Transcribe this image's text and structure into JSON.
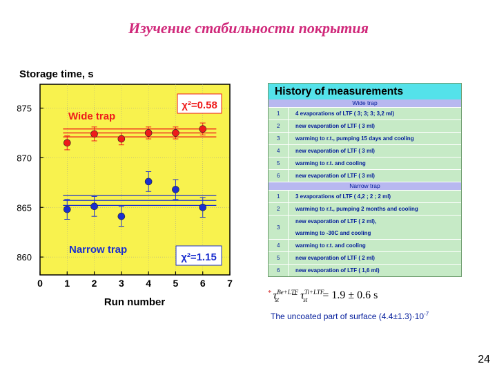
{
  "slide": {
    "title": "Изучение стабильности покрытия",
    "page_number": "24"
  },
  "chart_data": {
    "type": "scatter",
    "ylabel": "Storage time, s",
    "xlabel": "Run number",
    "xlim": [
      0,
      7
    ],
    "ylim": [
      858.2,
      877.4
    ],
    "xticks": [
      "0",
      "1",
      "2",
      "3",
      "4",
      "5",
      "6",
      "7"
    ],
    "yticks": [
      "860",
      "865",
      "870",
      "875"
    ],
    "colors": {
      "background": "#f8f24e",
      "wide": "#ee1b1b",
      "narrow": "#1b2fcf",
      "chi_text": "#ee1b1b"
    },
    "annotations": {
      "wide_label": "Wide trap",
      "narrow_label": "Narrow trap",
      "wide_chi": "χ²=0.58",
      "narrow_chi": "χ²=1.15"
    },
    "series": [
      {
        "name": "Wide trap",
        "x": [
          1,
          2,
          3,
          4,
          5,
          6
        ],
        "y": [
          871.5,
          872.4,
          871.9,
          872.5,
          872.5,
          872.9
        ],
        "err": [
          0.7,
          0.7,
          0.6,
          0.6,
          0.6,
          0.6
        ],
        "fit": [
          872.1,
          872.5,
          872.9
        ]
      },
      {
        "name": "Narrow trap",
        "x": [
          1,
          2,
          3,
          4,
          5,
          6
        ],
        "y": [
          864.8,
          865.1,
          864.1,
          867.6,
          866.8,
          865.0
        ],
        "err": [
          1.0,
          1.0,
          1.0,
          1.0,
          1.0,
          1.0
        ],
        "fit": [
          865.2,
          865.7,
          866.2
        ]
      }
    ]
  },
  "history": {
    "title": "History of measurements",
    "wide_header": "Wide trap",
    "narrow_header": "Narrow trap",
    "wide_rows": [
      {
        "num": "1",
        "text": "4 evaporations of LTF ( 3; 3; 3; 3,2 ml)"
      },
      {
        "num": "2",
        "text": "new evaporation of LTF ( 3 ml)"
      },
      {
        "num": "3",
        "text": "warming to r.t., pumping 15 days and cooling"
      },
      {
        "num": "4",
        "text": "new evaporation of LTF ( 3 ml)"
      },
      {
        "num": "5",
        "text": "warming to r.t. and cooling"
      },
      {
        "num": "6",
        "text": "new evaporation of LTF ( 3 ml)"
      }
    ],
    "narrow_rows": [
      {
        "num": "1",
        "text": "3 evaporations of LTF ( 4,2 ; 2 ; 2 ml)"
      },
      {
        "num": "2",
        "text": "warming to r.t., pumping 2 months and cooling"
      },
      {
        "num": "3",
        "text": "new evaporation of LTF ( 2 ml),",
        "text2": "warming to -30C and cooling"
      },
      {
        "num": "4",
        "text": "warming to r.t. and cooling"
      },
      {
        "num": "5",
        "text": "new evaporation of LTF ( 2 ml)"
      },
      {
        "num": "6",
        "text": "new evaporation of LTF ( 1,6 ml)"
      }
    ]
  },
  "formula": {
    "star": "*",
    "tau": "τ",
    "sub_st": "st",
    "sup_be": "Be+LTF",
    "sup_ti": "Ti+LTF",
    "minus": "−",
    "result": "= 1.9  ±  0.6 s"
  },
  "note": {
    "text": "The uncoated part of surface (4.4±1.3)·10",
    "exp": "-7"
  }
}
